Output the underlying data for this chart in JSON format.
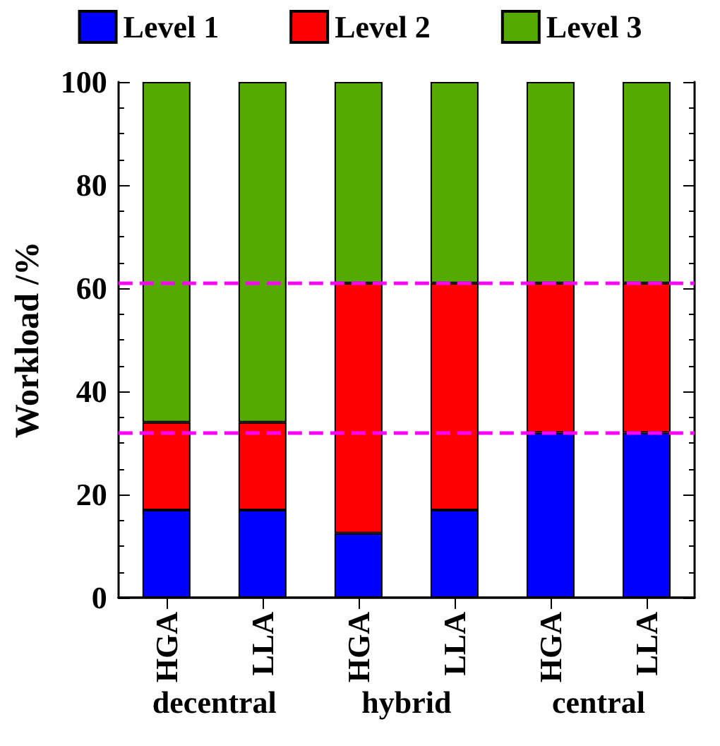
{
  "chart_data": {
    "type": "bar",
    "stacked": true,
    "ylabel": "Workload /%",
    "categories": [
      "HGA",
      "LLA",
      "HGA",
      "LLA",
      "HGA",
      "LLA"
    ],
    "series": [
      {
        "name": "Level 1",
        "color": "#0000ff",
        "values": [
          17,
          17,
          12.5,
          17,
          32,
          32
        ]
      },
      {
        "name": "Level 2",
        "color": "#ff0000",
        "values": [
          17,
          17,
          48.5,
          44,
          29,
          29
        ]
      },
      {
        "name": "Level 3",
        "color": "#55aa00",
        "values": [
          66,
          66,
          39,
          39,
          39,
          39
        ]
      }
    ],
    "ylim": [
      0,
      100
    ],
    "yticks": [
      0,
      20,
      40,
      60,
      80,
      100
    ],
    "ref_lines": [
      {
        "axis": "y",
        "value": 61,
        "color": "#ff00ff",
        "line_style": "dashed"
      },
      {
        "axis": "y",
        "value": 32,
        "color": "#ff00ff",
        "line_style": "dashed"
      }
    ],
    "annotations": [
      "decentral",
      "hybrid",
      "central"
    ],
    "legend": "top",
    "grid": false
  }
}
